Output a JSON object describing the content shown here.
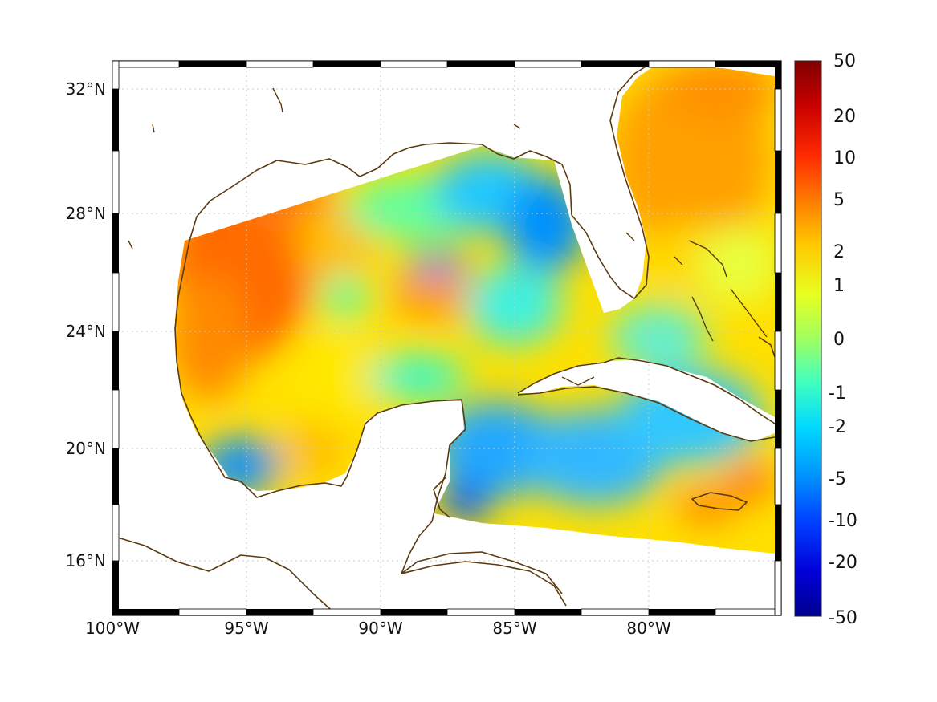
{
  "map": {
    "x_ticks": [
      {
        "lon": -100,
        "label": "100°W"
      },
      {
        "lon": -95,
        "label": "95°W"
      },
      {
        "lon": -90,
        "label": "90°W"
      },
      {
        "lon": -85,
        "label": "85°W"
      },
      {
        "lon": -80,
        "label": "80°W"
      }
    ],
    "y_ticks": [
      {
        "lat": 32,
        "label": "32°N"
      },
      {
        "lat": 28,
        "label": "28°N"
      },
      {
        "lat": 24,
        "label": "24°N"
      },
      {
        "lat": 20,
        "label": "20°N"
      },
      {
        "lat": 16,
        "label": "16°N"
      }
    ],
    "lon_range": [
      -100,
      -75
    ],
    "lat_range": [
      14.3,
      33.0
    ],
    "grid": true
  },
  "colorbar": {
    "labels": [
      "50",
      "20",
      "10",
      "5",
      "2",
      "1",
      "0",
      "-1",
      "-2",
      "-5",
      "-10",
      "-20",
      "-50"
    ],
    "colors": {
      "top": "#800000",
      "upper": "#ff4400",
      "mid_high": "#ffd400",
      "mid": "#a0ff60",
      "mid_low": "#00e0ff",
      "lower": "#0060ff",
      "bottom": "#00008f"
    }
  },
  "colors": {
    "coastline": "#5a3a10",
    "land": "#ffffff",
    "grid": "#c8c8c8"
  }
}
